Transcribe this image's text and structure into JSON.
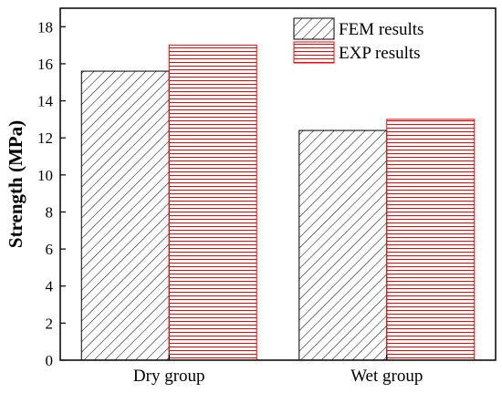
{
  "chart_data": {
    "type": "bar",
    "categories": [
      "Dry group",
      "Wet group"
    ],
    "series": [
      {
        "name": "FEM results",
        "values": [
          15.6,
          12.4
        ],
        "color": "#000000",
        "pattern": "diagonal-hatch"
      },
      {
        "name": "EXP results",
        "values": [
          17.0,
          13.0
        ],
        "color": "#ff0000",
        "pattern": "horizontal-lines"
      }
    ],
    "title": "",
    "xlabel": "",
    "ylabel": "Strength (MPa)",
    "ylim": [
      0,
      19
    ],
    "yticks": [
      0,
      2,
      4,
      6,
      8,
      10,
      12,
      14,
      16,
      18
    ],
    "grid": false,
    "legend_position": "top-right"
  }
}
